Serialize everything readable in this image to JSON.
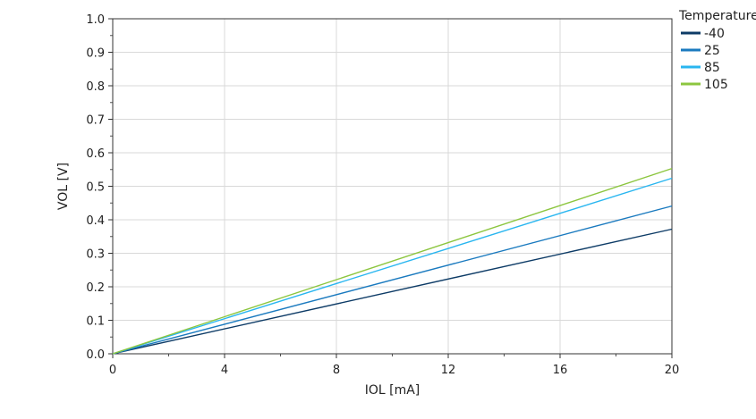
{
  "chart_data": {
    "type": "line",
    "xlabel": "IOL [mA]",
    "ylabel": "VOL [V]",
    "xlim": [
      0,
      20
    ],
    "ylim": [
      0,
      1.0
    ],
    "xticks": [
      "0",
      "4",
      "8",
      "12",
      "16",
      "20"
    ],
    "yticks": [
      "0.0",
      "0.1",
      "0.2",
      "0.3",
      "0.4",
      "0.5",
      "0.6",
      "0.7",
      "0.8",
      "0.9",
      "1.0"
    ],
    "grid": true,
    "legend": {
      "title": "Temperature",
      "placement": "right"
    },
    "series": [
      {
        "name": "-40",
        "color": "#0d3b66",
        "x": [
          0,
          20
        ],
        "y": [
          0.0,
          0.372
        ]
      },
      {
        "name": "25",
        "color": "#1a7abf",
        "x": [
          0,
          20
        ],
        "y": [
          0.0,
          0.441
        ]
      },
      {
        "name": "85",
        "color": "#29b6f0",
        "x": [
          0,
          20
        ],
        "y": [
          0.0,
          0.524
        ]
      },
      {
        "name": "105",
        "color": "#8cc63f",
        "x": [
          0,
          20
        ],
        "y": [
          0.0,
          0.553
        ]
      }
    ]
  }
}
